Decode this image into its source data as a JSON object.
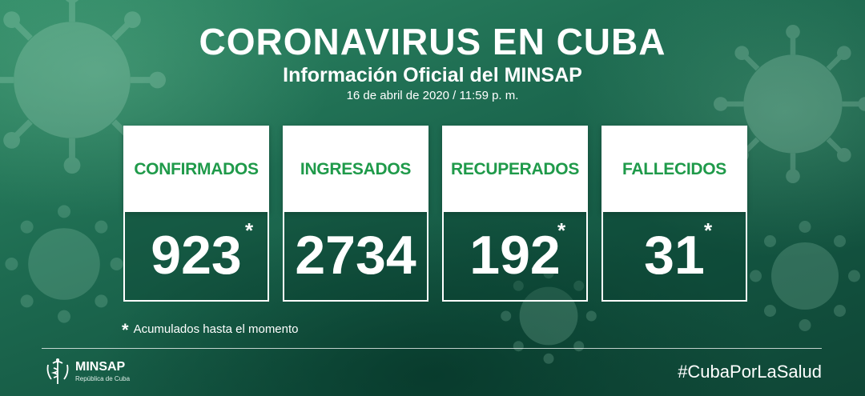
{
  "header": {
    "title": "CORONAVIRUS EN CUBA",
    "subtitle": "Información Oficial del MINSAP",
    "date": "16 de abril de 2020 / 11:59 p. m."
  },
  "cards": [
    {
      "label": "CONFIRMADOS",
      "value": "923",
      "asterisk": "*"
    },
    {
      "label": "INGRESADOS",
      "value": "2734",
      "asterisk": ""
    },
    {
      "label": "RECUPERADOS",
      "value": "192",
      "asterisk": "*"
    },
    {
      "label": "FALLECIDOS",
      "value": "31",
      "asterisk": "*"
    }
  ],
  "note": {
    "star": "*",
    "text": "Acumulados hasta el momento"
  },
  "footer": {
    "logo_name": "MINSAP",
    "logo_subtitle": "República de Cuba",
    "hashtag": "#CubaPorLaSalud"
  },
  "colors": {
    "label_green": "#1f9a4a",
    "background": "#1d6a50"
  }
}
